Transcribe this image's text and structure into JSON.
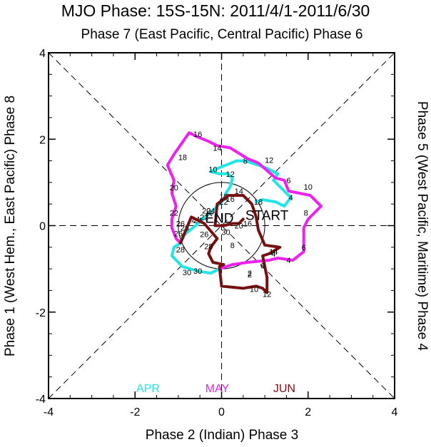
{
  "chart_data": {
    "type": "line",
    "title": "MJO Phase: 15S-15N: 2011/4/1-2011/6/30",
    "top_label": "Phase 7 (East Pacific, Central Pacific) Phase 6",
    "bottom_label": "Phase 2 (Indian) Phase 3",
    "left_label": "Phase 1 (West Hem., East Pacific) Phase 8",
    "right_label": "Phase 5 (West Pacific, Maritime) Phase 4",
    "xlim": [
      -4,
      4
    ],
    "ylim": [
      -4,
      4
    ],
    "x_ticks": [
      "-4",
      "-2",
      "0",
      "2",
      "4"
    ],
    "y_ticks": [
      "-4",
      "-2",
      "0",
      "2",
      "4"
    ],
    "start_label": "START",
    "end_label": "END",
    "unit_circle_radius": 1,
    "series": [
      {
        "name": "APR",
        "color": "#22e5e5",
        "points": [
          [
            0.8,
            0.55
          ],
          [
            0.95,
            0.6
          ],
          [
            1.25,
            0.55
          ],
          [
            1.45,
            0.45
          ],
          [
            1.6,
            0.65
          ],
          [
            1.45,
            0.8
          ],
          [
            1.2,
            1.05
          ],
          [
            1.3,
            1.2
          ],
          [
            1.0,
            1.35
          ],
          [
            0.55,
            1.5
          ],
          [
            0.35,
            1.5
          ],
          [
            0.1,
            1.4
          ],
          [
            -0.15,
            1.3
          ],
          [
            -0.25,
            1.25
          ],
          [
            -0.05,
            1.2
          ],
          [
            0.15,
            1.2
          ],
          [
            0.25,
            1.1
          ],
          [
            0.2,
            0.9
          ],
          [
            0.1,
            0.75
          ],
          [
            0.05,
            0.6
          ],
          [
            -0.15,
            0.4
          ],
          [
            -0.6,
            0.0
          ],
          [
            -0.85,
            -0.2
          ],
          [
            -0.95,
            -0.4
          ],
          [
            -1.1,
            -0.5
          ],
          [
            -1.15,
            -0.7
          ],
          [
            -0.9,
            -0.95
          ],
          [
            -0.55,
            -1.05
          ],
          [
            -0.25,
            -1.1
          ],
          [
            -0.05,
            -1.0
          ]
        ],
        "labels": [
          {
            "text": "4",
            "x": 1.6,
            "y": 0.65
          },
          {
            "text": "6",
            "x": 1.55,
            "y": 1.05
          },
          {
            "text": "8",
            "x": 0.55,
            "y": 1.5
          },
          {
            "text": "10",
            "x": -0.2,
            "y": 1.3
          },
          {
            "text": "12",
            "x": 0.2,
            "y": 1.2
          },
          {
            "text": "14",
            "x": 0.4,
            "y": 0.8
          },
          {
            "text": "16",
            "x": 0.2,
            "y": 0.62
          },
          {
            "text": "18",
            "x": 0.05,
            "y": 0.68
          },
          {
            "text": "20",
            "x": -0.35,
            "y": 0.35
          },
          {
            "text": "22",
            "x": -0.4,
            "y": 0.2
          },
          {
            "text": "24",
            "x": -0.55,
            "y": 0.12
          },
          {
            "text": "26",
            "x": -0.95,
            "y": 0.05
          },
          {
            "text": "28",
            "x": -0.85,
            "y": -0.05
          },
          {
            "text": "30",
            "x": -0.8,
            "y": -1.08
          }
        ]
      },
      {
        "name": "MAY",
        "color": "#ee22ee",
        "points": [
          [
            -0.05,
            -1.0
          ],
          [
            0.25,
            -0.9
          ],
          [
            0.6,
            -0.85
          ],
          [
            1.1,
            -0.8
          ],
          [
            1.3,
            -0.75
          ],
          [
            1.65,
            -0.8
          ],
          [
            1.9,
            -0.6
          ],
          [
            1.9,
            -0.35
          ],
          [
            1.9,
            -0.05
          ],
          [
            2.0,
            0.15
          ],
          [
            2.3,
            0.45
          ],
          [
            2.05,
            0.7
          ],
          [
            1.55,
            0.8
          ],
          [
            1.45,
            1.05
          ],
          [
            1.25,
            1.1
          ],
          [
            0.85,
            1.45
          ],
          [
            0.6,
            1.55
          ],
          [
            0.2,
            1.8
          ],
          [
            -0.1,
            1.85
          ],
          [
            -0.3,
            1.95
          ],
          [
            -0.55,
            2.05
          ],
          [
            -0.75,
            2.15
          ],
          [
            -1.1,
            1.65
          ],
          [
            -1.25,
            1.4
          ],
          [
            -1.1,
            1.05
          ],
          [
            -1.15,
            0.75
          ],
          [
            -1.05,
            0.45
          ],
          [
            -1.15,
            0.15
          ],
          [
            -1.15,
            -0.05
          ],
          [
            -1.05,
            -0.3
          ],
          [
            -0.95,
            -0.4
          ]
        ],
        "labels": [
          {
            "text": "2",
            "x": 0.65,
            "y": -1.1
          },
          {
            "text": "4",
            "x": 1.55,
            "y": -0.8
          },
          {
            "text": "6",
            "x": 1.9,
            "y": -0.5
          },
          {
            "text": "8",
            "x": 1.95,
            "y": 0.3
          },
          {
            "text": "10",
            "x": 2.0,
            "y": 0.9
          },
          {
            "text": "12",
            "x": 1.1,
            "y": 1.52
          },
          {
            "text": "14",
            "x": -0.1,
            "y": 1.8
          },
          {
            "text": "16",
            "x": -0.55,
            "y": 2.12
          },
          {
            "text": "18",
            "x": -0.9,
            "y": 1.58
          },
          {
            "text": "20",
            "x": -1.1,
            "y": 0.88
          },
          {
            "text": "22",
            "x": -1.1,
            "y": 0.3
          },
          {
            "text": "24",
            "x": -0.6,
            "y": 0.15
          },
          {
            "text": "26",
            "x": -1.0,
            "y": -0.18
          },
          {
            "text": "28",
            "x": -0.95,
            "y": -0.55
          },
          {
            "text": "30",
            "x": -0.55,
            "y": -1.05
          }
        ]
      },
      {
        "name": "JUN",
        "color": "#771111",
        "points": [
          [
            -0.95,
            -0.4
          ],
          [
            -0.7,
            0.2
          ],
          [
            -0.5,
            0.1
          ],
          [
            -0.4,
            0.05
          ],
          [
            -0.1,
            -0.3
          ],
          [
            -0.25,
            -0.5
          ],
          [
            -0.3,
            -0.65
          ],
          [
            -0.2,
            -0.85
          ],
          [
            0.05,
            -0.9
          ],
          [
            -0.05,
            -0.95
          ],
          [
            0.0,
            -1.4
          ],
          [
            0.5,
            -1.45
          ],
          [
            0.8,
            -1.4
          ],
          [
            0.95,
            -1.45
          ],
          [
            1.05,
            -1.55
          ],
          [
            1.05,
            -1.2
          ],
          [
            0.95,
            -0.7
          ],
          [
            1.1,
            -0.65
          ],
          [
            1.35,
            -0.5
          ],
          [
            1.0,
            -0.45
          ],
          [
            0.85,
            -0.1
          ],
          [
            0.8,
            0.2
          ],
          [
            0.7,
            0.5
          ],
          [
            0.5,
            0.7
          ],
          [
            0.15,
            0.7
          ],
          [
            -0.1,
            0.5
          ],
          [
            -0.15,
            0.0
          ],
          [
            0.05,
            0.0
          ],
          [
            0.25,
            0.05
          ],
          [
            0.4,
            0.05
          ],
          [
            0.5,
            0.15
          ]
        ],
        "labels": [
          {
            "text": "2",
            "x": 0.65,
            "y": -1.13
          },
          {
            "text": "4",
            "x": 1.2,
            "y": -0.65
          },
          {
            "text": "6",
            "x": 0.95,
            "y": -0.92
          },
          {
            "text": "8",
            "x": 0.25,
            "y": -0.45
          },
          {
            "text": "10",
            "x": 0.75,
            "y": -1.47
          },
          {
            "text": "12",
            "x": 1.05,
            "y": -1.58
          },
          {
            "text": "14",
            "x": 1.2,
            "y": -0.6
          },
          {
            "text": "16",
            "x": 0.6,
            "y": 0.05
          },
          {
            "text": "18",
            "x": 0.85,
            "y": 0.55
          },
          {
            "text": "20",
            "x": 0.4,
            "y": 0.0
          },
          {
            "text": "22",
            "x": 0.05,
            "y": 0.55
          },
          {
            "text": "24",
            "x": -0.25,
            "y": 0.35
          },
          {
            "text": "26",
            "x": -0.4,
            "y": -0.2
          },
          {
            "text": "28",
            "x": -0.3,
            "y": -0.48
          },
          {
            "text": "30",
            "x": 0.1,
            "y": -0.15
          }
        ]
      }
    ]
  }
}
